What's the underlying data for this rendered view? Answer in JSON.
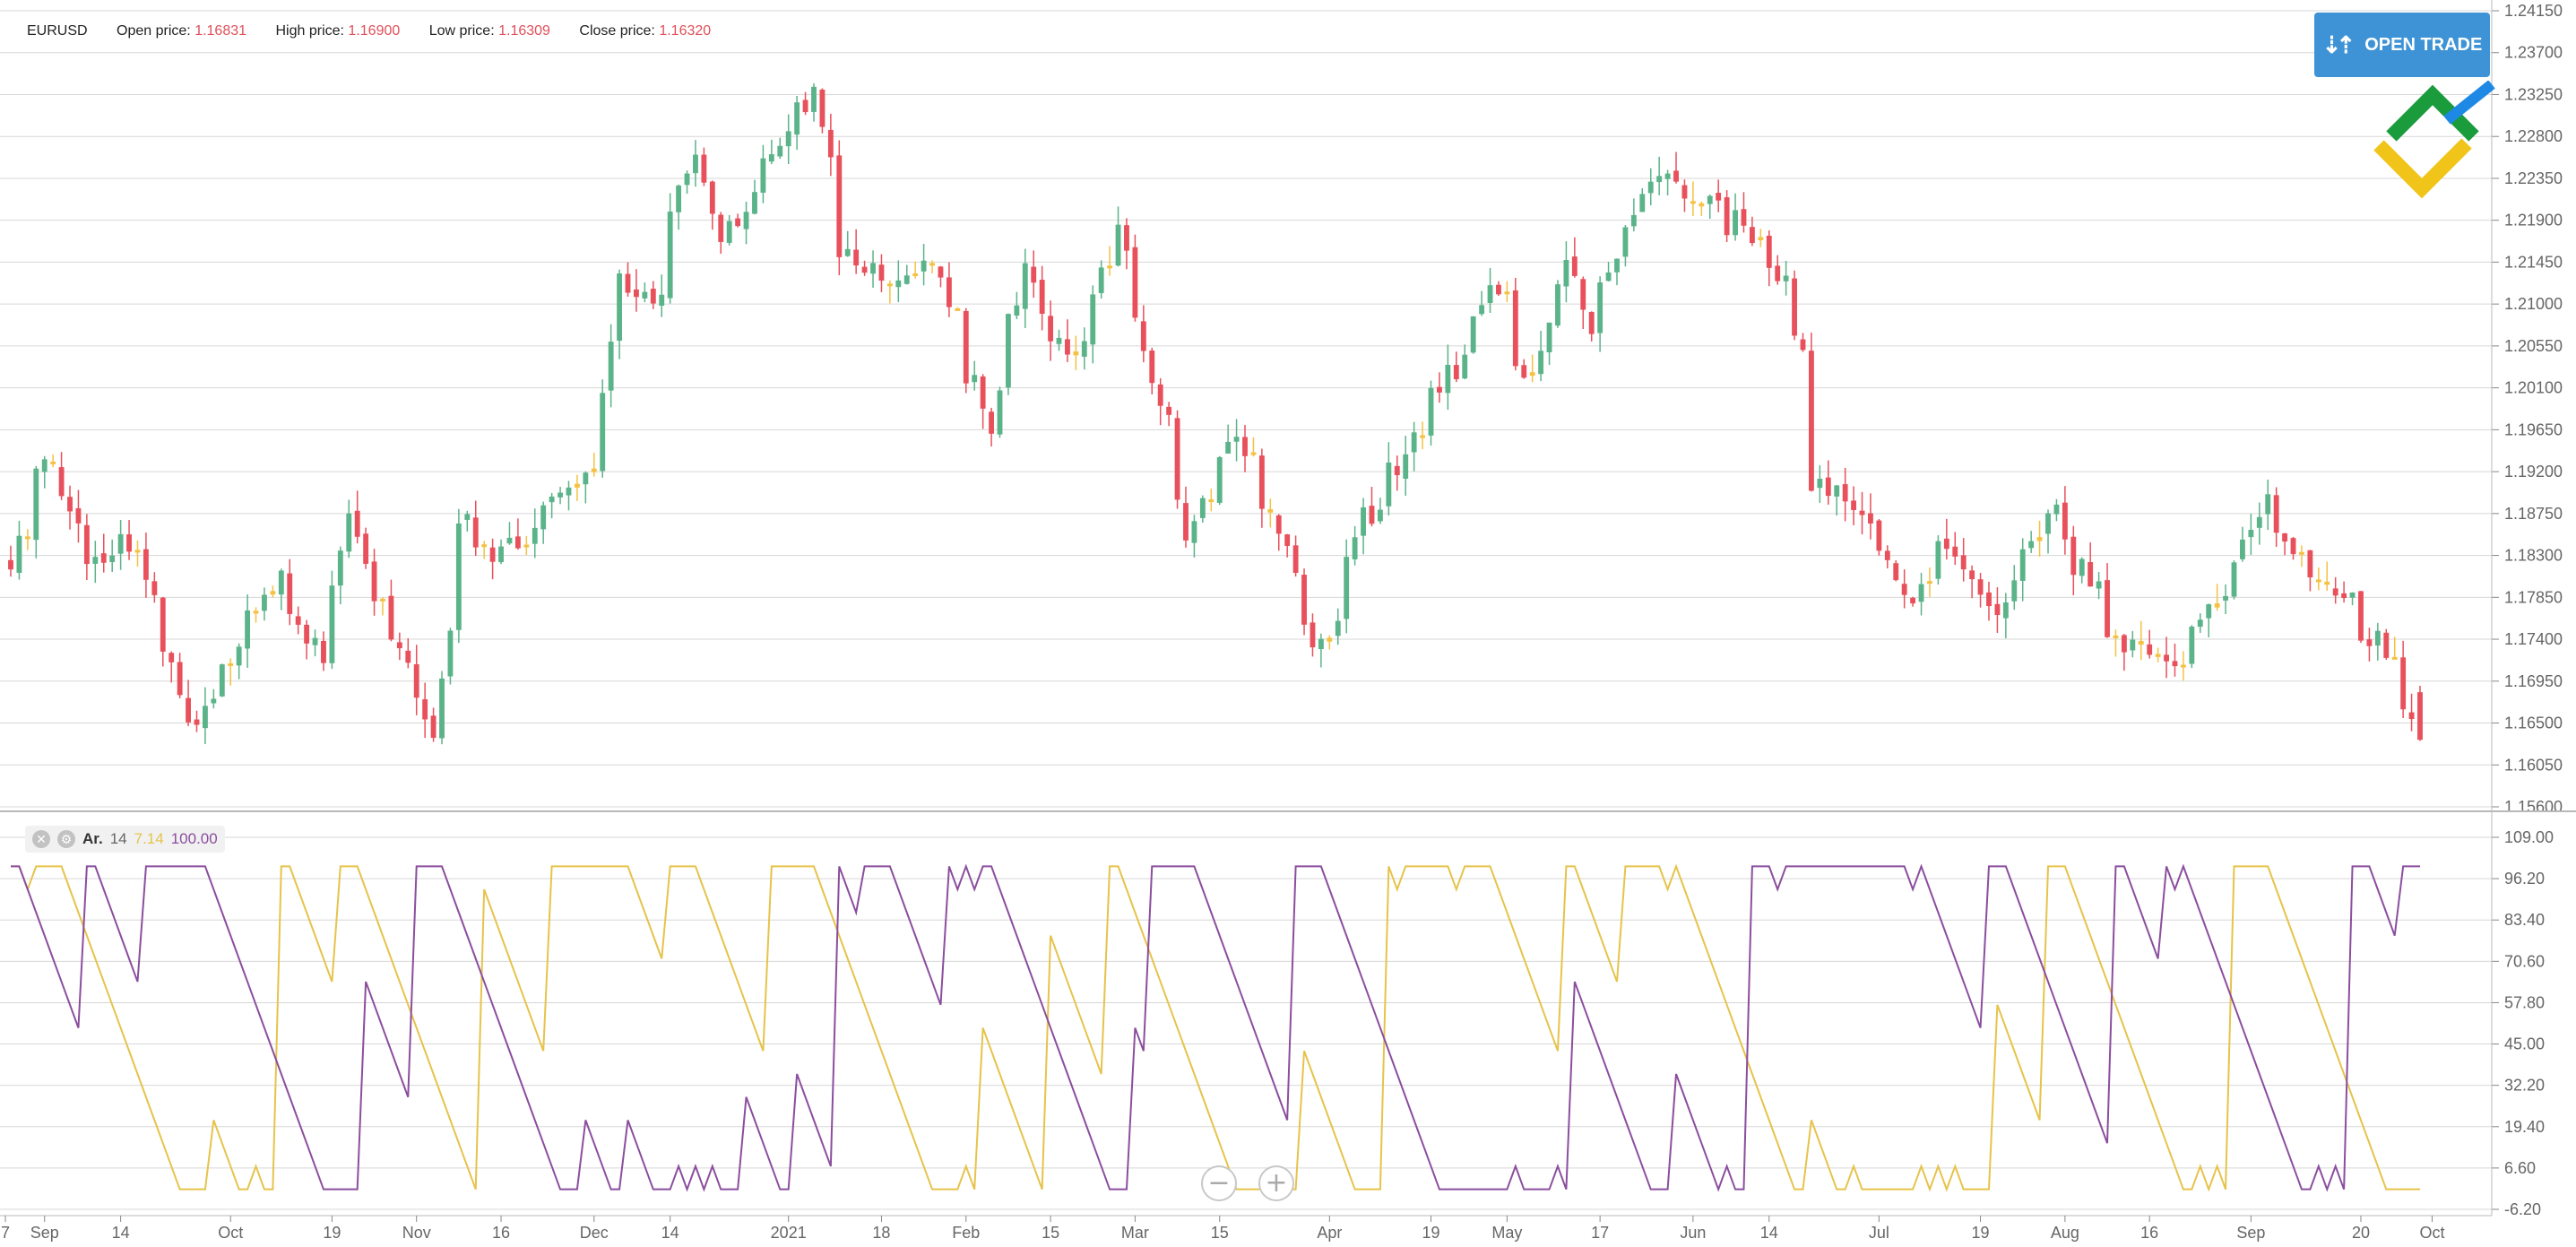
{
  "header": {
    "symbol": "EURUSD",
    "open_label": "Open price:",
    "open_value": "1.16831",
    "high_label": "High price:",
    "high_value": "1.16900",
    "low_label": "Low price:",
    "low_value": "1.16309",
    "close_label": "Close price:",
    "close_value": "1.16320"
  },
  "buttons": {
    "open_trade": "OPEN TRADE",
    "open_trade_icon": "up-down-arrows-icon",
    "zoom_out_icon": "minus-circle-icon",
    "zoom_in_icon": "plus-circle-icon"
  },
  "logo": {
    "icon": "brand-logo-icon",
    "colors": [
      "#1a9b3c",
      "#f0c419",
      "#1e88e5"
    ]
  },
  "indicator": {
    "name": "Ar.",
    "period": "14",
    "lower_level": "7.14",
    "upper_level": "100.00",
    "close_icon": "close-icon",
    "settings_icon": "gear-icon"
  },
  "colors": {
    "up": "#5bb38a",
    "down": "#e8505b",
    "doji": "#f4c142",
    "aroon_up": "#e6c34b",
    "aroon_down": "#8b4e9e",
    "grid": "#d7d7d7",
    "axis_text": "#666666",
    "open_trade_bg": "#3d93d5"
  },
  "chart_data": [
    {
      "type": "candlestick",
      "title": "EURUSD",
      "y_ticks": [
        "1.24150",
        "1.23700",
        "1.23250",
        "1.22800",
        "1.22350",
        "1.21900",
        "1.21450",
        "1.21000",
        "1.20550",
        "1.20100",
        "1.19650",
        "1.19200",
        "1.18750",
        "1.18300",
        "1.17850",
        "1.17400",
        "1.16950",
        "1.16500",
        "1.16050",
        "1.15600"
      ],
      "ylim": [
        1.156,
        1.2415
      ],
      "x_ticks": [
        "7",
        "Sep",
        "14",
        "Oct",
        "19",
        "Nov",
        "16",
        "Dec",
        "14",
        "2021",
        "18",
        "Feb",
        "15",
        "Mar",
        "15",
        "Apr",
        "19",
        "May",
        "17",
        "Jun",
        "14",
        "Jul",
        "19",
        "Aug",
        "16",
        "Sep",
        "20",
        "Oct"
      ],
      "close_anchors": [
        {
          "date": "2020-08-26",
          "close": 1.183
        },
        {
          "date": "2020-09-01",
          "close": 1.193
        },
        {
          "date": "2020-09-10",
          "close": 1.181
        },
        {
          "date": "2020-09-14",
          "close": 1.186
        },
        {
          "date": "2020-09-25",
          "close": 1.164
        },
        {
          "date": "2020-10-09",
          "close": 1.182
        },
        {
          "date": "2020-10-16",
          "close": 1.172
        },
        {
          "date": "2020-10-21",
          "close": 1.186
        },
        {
          "date": "2020-11-04",
          "close": 1.165
        },
        {
          "date": "2020-11-09",
          "close": 1.188
        },
        {
          "date": "2020-11-13",
          "close": 1.182
        },
        {
          "date": "2020-12-01",
          "close": 1.193
        },
        {
          "date": "2020-12-04",
          "close": 1.213
        },
        {
          "date": "2020-12-10",
          "close": 1.21
        },
        {
          "date": "2020-12-17",
          "close": 1.226
        },
        {
          "date": "2020-12-22",
          "close": 1.218
        },
        {
          "date": "2021-01-06",
          "close": 1.232
        },
        {
          "date": "2021-01-11",
          "close": 1.215
        },
        {
          "date": "2021-01-20",
          "close": 1.212
        },
        {
          "date": "2021-01-26",
          "close": 1.215
        },
        {
          "date": "2021-02-04",
          "close": 1.197
        },
        {
          "date": "2021-02-10",
          "close": 1.213
        },
        {
          "date": "2021-02-17",
          "close": 1.204
        },
        {
          "date": "2021-02-25",
          "close": 1.217
        },
        {
          "date": "2021-03-01",
          "close": 1.208
        },
        {
          "date": "2021-03-09",
          "close": 1.186
        },
        {
          "date": "2021-03-17",
          "close": 1.196
        },
        {
          "date": "2021-03-31",
          "close": 1.173
        },
        {
          "date": "2021-04-06",
          "close": 1.186
        },
        {
          "date": "2021-04-16",
          "close": 1.196
        },
        {
          "date": "2021-04-29",
          "close": 1.212
        },
        {
          "date": "2021-05-04",
          "close": 1.201
        },
        {
          "date": "2021-05-11",
          "close": 1.214
        },
        {
          "date": "2021-05-14",
          "close": 1.208
        },
        {
          "date": "2021-05-25",
          "close": 1.224
        },
        {
          "date": "2021-06-01",
          "close": 1.222
        },
        {
          "date": "2021-06-09",
          "close": 1.218
        },
        {
          "date": "2021-06-16",
          "close": 1.212
        },
        {
          "date": "2021-06-21",
          "close": 1.191
        },
        {
          "date": "2021-06-30",
          "close": 1.186
        },
        {
          "date": "2021-07-07",
          "close": 1.179
        },
        {
          "date": "2021-07-13",
          "close": 1.184
        },
        {
          "date": "2021-07-21",
          "close": 1.178
        },
        {
          "date": "2021-07-30",
          "close": 1.187
        },
        {
          "date": "2021-08-11",
          "close": 1.173
        },
        {
          "date": "2021-08-20",
          "close": 1.17
        },
        {
          "date": "2021-09-03",
          "close": 1.188
        },
        {
          "date": "2021-09-10",
          "close": 1.181
        },
        {
          "date": "2021-09-14",
          "close": 1.18
        },
        {
          "date": "2021-09-24",
          "close": 1.172
        },
        {
          "date": "2021-09-29",
          "close": 1.1632
        }
      ]
    },
    {
      "type": "line",
      "title": "Ar. 14",
      "y_ticks": [
        "109.00",
        "96.20",
        "83.40",
        "70.60",
        "57.80",
        "45.00",
        "32.20",
        "19.40",
        "6.60",
        "-6.20"
      ],
      "ylim": [
        -6.2,
        109
      ],
      "period": 14
    }
  ]
}
